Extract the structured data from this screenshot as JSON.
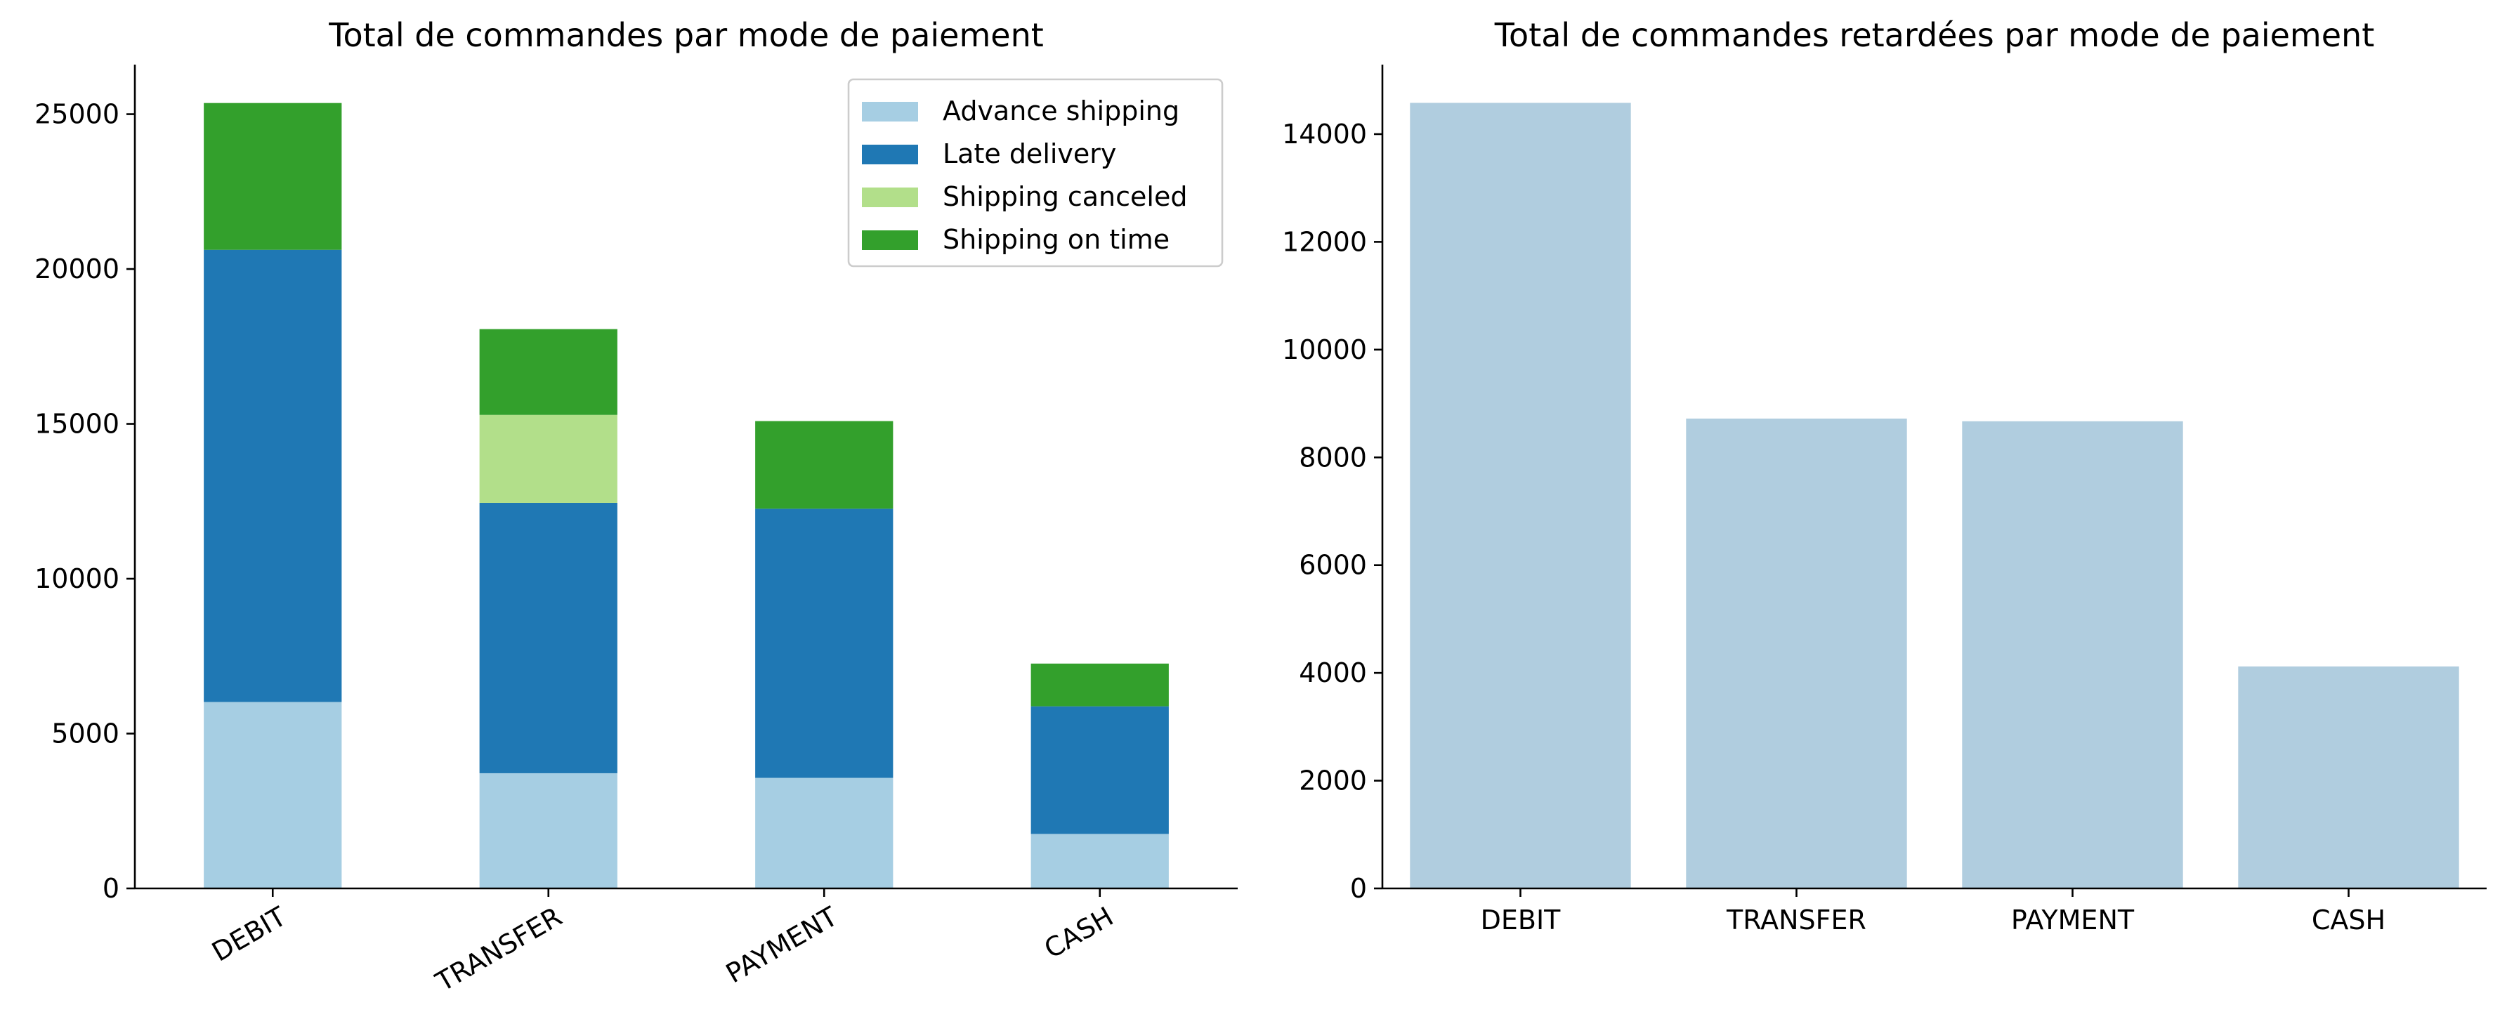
{
  "chart_data": [
    {
      "type": "bar",
      "stacked": true,
      "title": "Total de commandes par mode de paiement",
      "xlabel": "",
      "ylabel": "",
      "categories": [
        "DEBIT",
        "TRANSFER",
        "PAYMENT",
        "CASH"
      ],
      "series": [
        {
          "name": "Advance shipping",
          "color": "#a6cee3",
          "values": [
            6020,
            3720,
            3570,
            1760
          ]
        },
        {
          "name": "Late delivery",
          "color": "#1f78b4",
          "values": [
            14600,
            8730,
            8690,
            4120
          ]
        },
        {
          "name": "Shipping canceled",
          "color": "#b2df8a",
          "values": [
            0,
            2840,
            0,
            0
          ]
        },
        {
          "name": "Shipping on time",
          "color": "#33a02c",
          "values": [
            4740,
            2770,
            2830,
            1380
          ]
        }
      ],
      "ylim": [
        0,
        26600
      ],
      "yticks": [
        0,
        5000,
        10000,
        15000,
        20000,
        25000
      ],
      "xtick_rotation": 30,
      "legend_position": "top-right",
      "grid": false
    },
    {
      "type": "bar",
      "title": "Total de commandes retardées par mode de paiement",
      "xlabel": "",
      "ylabel": "",
      "categories": [
        "DEBIT",
        "TRANSFER",
        "PAYMENT",
        "CASH"
      ],
      "values": [
        14580,
        8720,
        8670,
        4120
      ],
      "color": "#b0cddf",
      "ylim": [
        0,
        15290
      ],
      "yticks": [
        0,
        2000,
        4000,
        6000,
        8000,
        10000,
        12000,
        14000
      ],
      "xtick_rotation": 0,
      "grid": false
    }
  ]
}
